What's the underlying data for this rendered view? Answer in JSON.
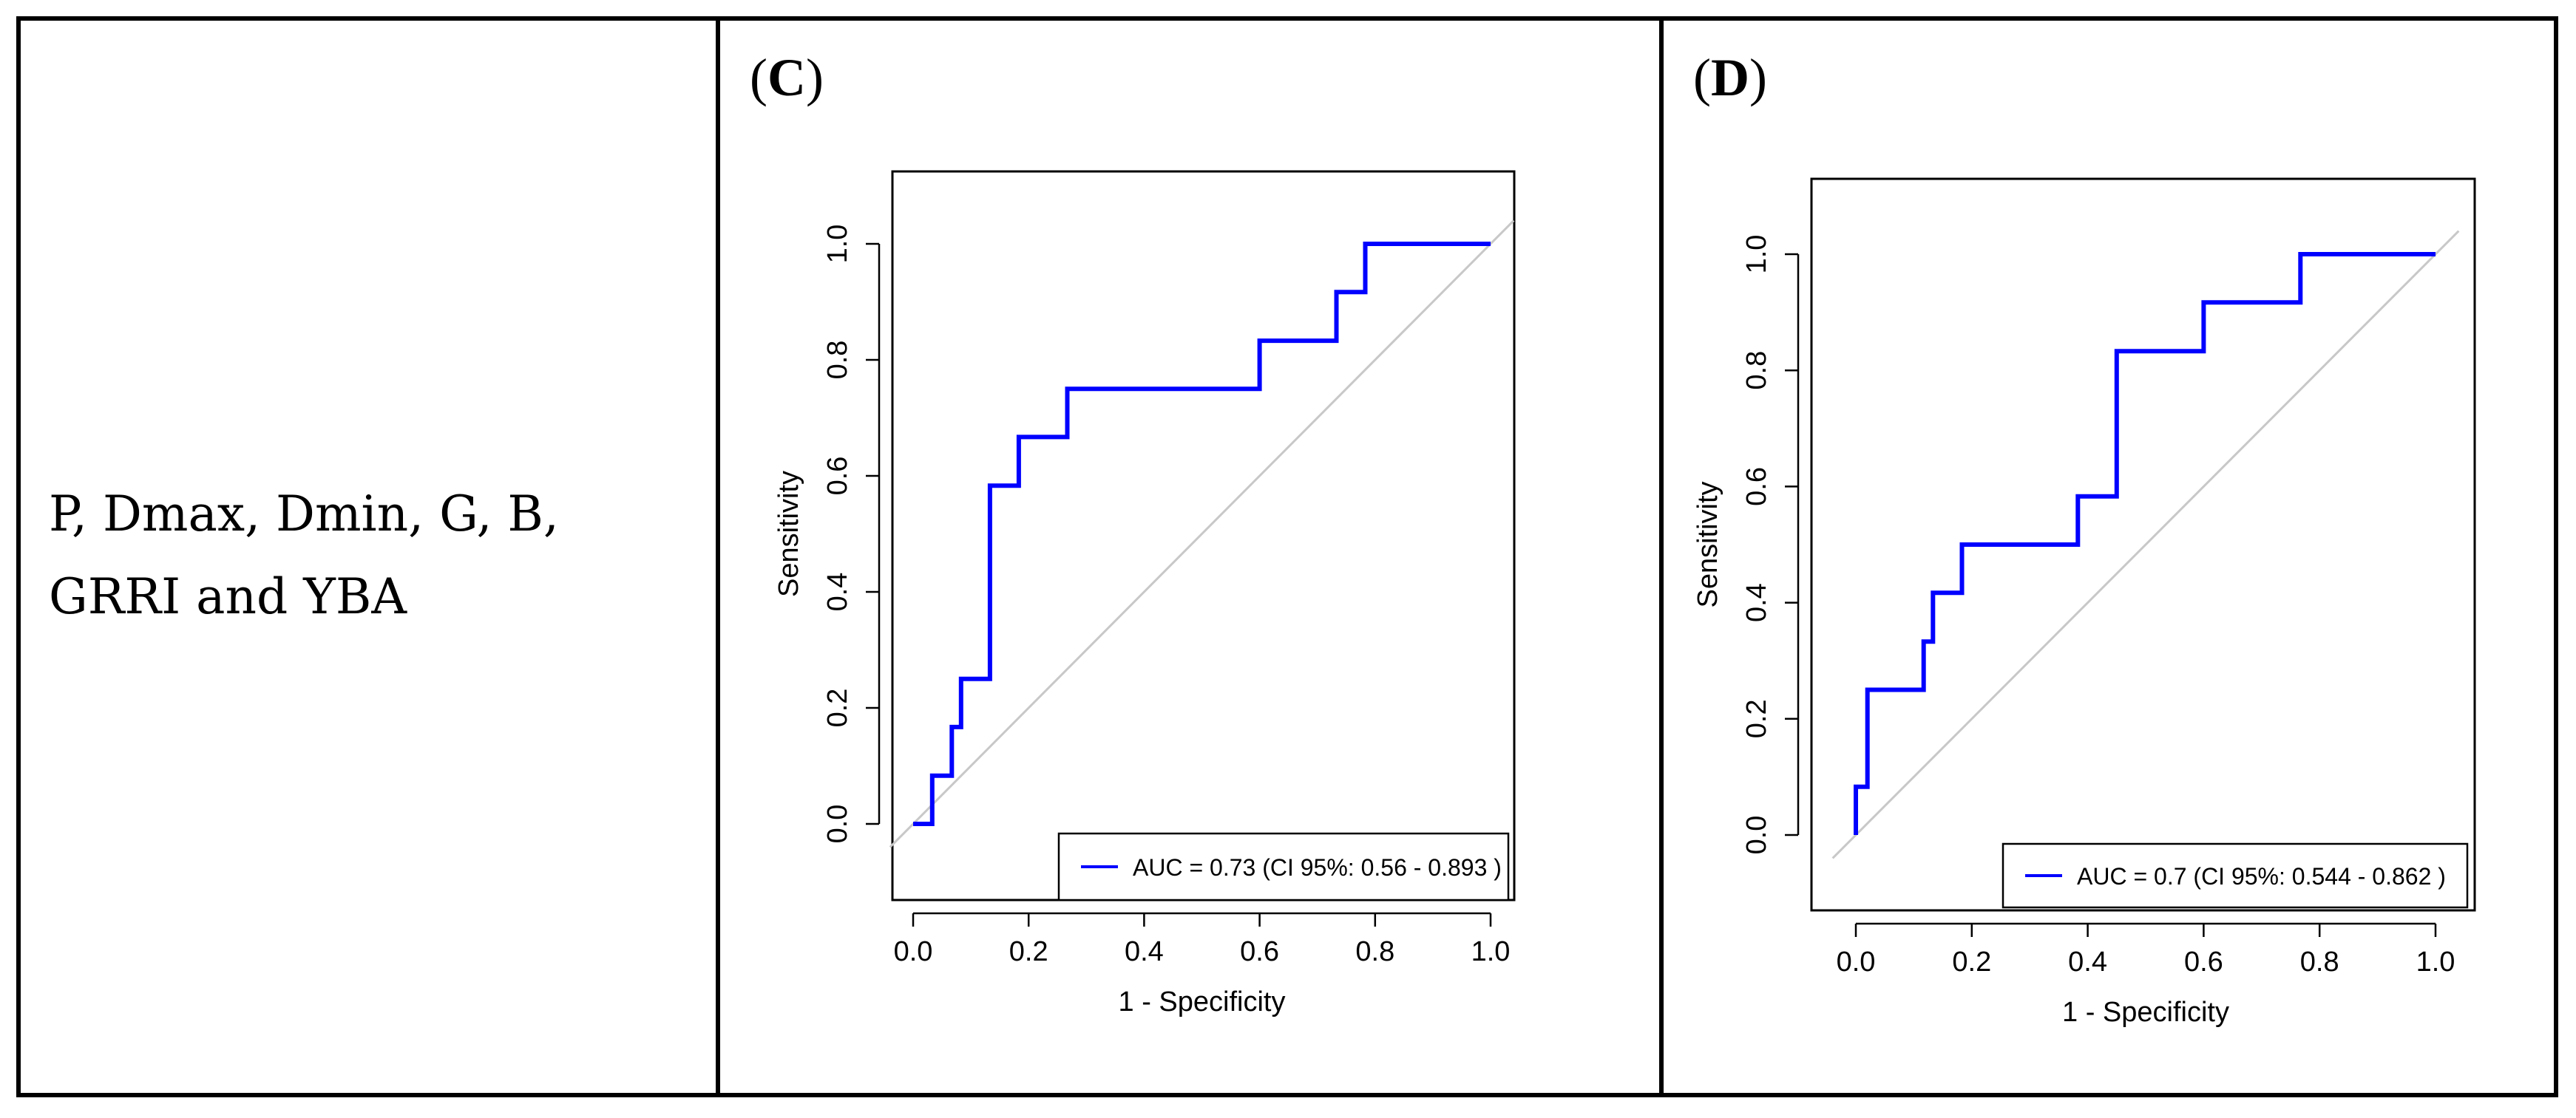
{
  "left_cell": {
    "text": "P, Dmax, Dmin, G, B, GRRI and YBA"
  },
  "chart_data": [
    {
      "type": "line",
      "panel_label": "C",
      "title": "",
      "xlabel": "1 - Specificity",
      "ylabel": "Sensitivity",
      "xlim": [
        0.0,
        1.0
      ],
      "ylim": [
        0.0,
        1.0
      ],
      "xticks": [
        "0.0",
        "0.2",
        "0.4",
        "0.6",
        "0.8",
        "1.0"
      ],
      "yticks": [
        "0.0",
        "0.2",
        "0.4",
        "0.6",
        "0.8",
        "1.0"
      ],
      "legend_position": "bottom-right",
      "series": [
        {
          "name": "AUC = 0.73 (CI 95%: 0.56 - 0.893 )",
          "color": "#0000ff",
          "x": [
            0.0,
            0.033,
            0.033,
            0.067,
            0.067,
            0.083,
            0.083,
            0.133,
            0.133,
            0.183,
            0.183,
            0.267,
            0.267,
            0.6,
            0.6,
            0.733,
            0.733,
            0.783,
            0.783,
            1.0
          ],
          "y": [
            0.0,
            0.0,
            0.083,
            0.083,
            0.167,
            0.167,
            0.25,
            0.25,
            0.583,
            0.583,
            0.667,
            0.667,
            0.75,
            0.75,
            0.833,
            0.833,
            0.917,
            0.917,
            1.0,
            1.0
          ]
        },
        {
          "name": "reference",
          "color": "#c8c8c8",
          "x": [
            -0.04,
            1.04
          ],
          "y": [
            -0.04,
            1.04
          ]
        }
      ]
    },
    {
      "type": "line",
      "panel_label": "D",
      "title": "",
      "xlabel": "1 - Specificity",
      "ylabel": "Sensitivity",
      "xlim": [
        0.0,
        1.0
      ],
      "ylim": [
        0.0,
        1.0
      ],
      "xticks": [
        "0.0",
        "0.2",
        "0.4",
        "0.6",
        "0.8",
        "1.0"
      ],
      "yticks": [
        "0.0",
        "0.2",
        "0.4",
        "0.6",
        "0.8",
        "1.0"
      ],
      "legend_position": "bottom-right",
      "series": [
        {
          "name": "AUC = 0.7 (CI 95%: 0.544 - 0.862 )",
          "color": "#0000ff",
          "x": [
            0.0,
            0.0,
            0.008,
            0.008,
            0.02,
            0.02,
            0.117,
            0.117,
            0.133,
            0.133,
            0.183,
            0.183,
            0.383,
            0.383,
            0.45,
            0.45,
            0.6,
            0.6,
            0.767,
            0.767,
            1.0
          ],
          "y": [
            0.0,
            0.083,
            0.083,
            0.083,
            0.083,
            0.25,
            0.25,
            0.333,
            0.333,
            0.417,
            0.417,
            0.5,
            0.5,
            0.583,
            0.583,
            0.833,
            0.833,
            0.917,
            0.917,
            1.0,
            1.0
          ]
        },
        {
          "name": "reference",
          "color": "#c8c8c8",
          "x": [
            -0.04,
            1.04
          ],
          "y": [
            -0.04,
            1.04
          ]
        }
      ]
    }
  ]
}
